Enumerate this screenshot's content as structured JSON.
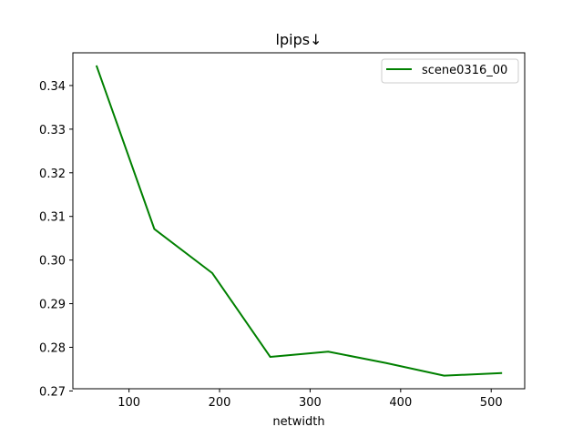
{
  "chart_data": {
    "type": "line",
    "title": "lpips↓",
    "xlabel": "netwidth",
    "ylabel": "",
    "xlim": [
      38,
      537
    ],
    "ylim": [
      0.2705,
      0.3475
    ],
    "xticks": [
      100,
      200,
      300,
      400,
      500
    ],
    "yticks": [
      0.27,
      0.28,
      0.29,
      0.3,
      0.31,
      0.32,
      0.33,
      0.34
    ],
    "xtick_labels": [
      "100",
      "200",
      "300",
      "400",
      "500"
    ],
    "ytick_labels": [
      "0.27",
      "0.28",
      "0.29",
      "0.30",
      "0.31",
      "0.32",
      "0.33",
      "0.34"
    ],
    "grid": false,
    "legend_position": "upper-right",
    "series": [
      {
        "name": "scene0316_00",
        "color": "#008000",
        "x": [
          64,
          128,
          192,
          256,
          320,
          384,
          448,
          512
        ],
        "y": [
          0.3446,
          0.3071,
          0.297,
          0.2778,
          0.279,
          0.2764,
          0.2735,
          0.2741
        ]
      }
    ]
  }
}
